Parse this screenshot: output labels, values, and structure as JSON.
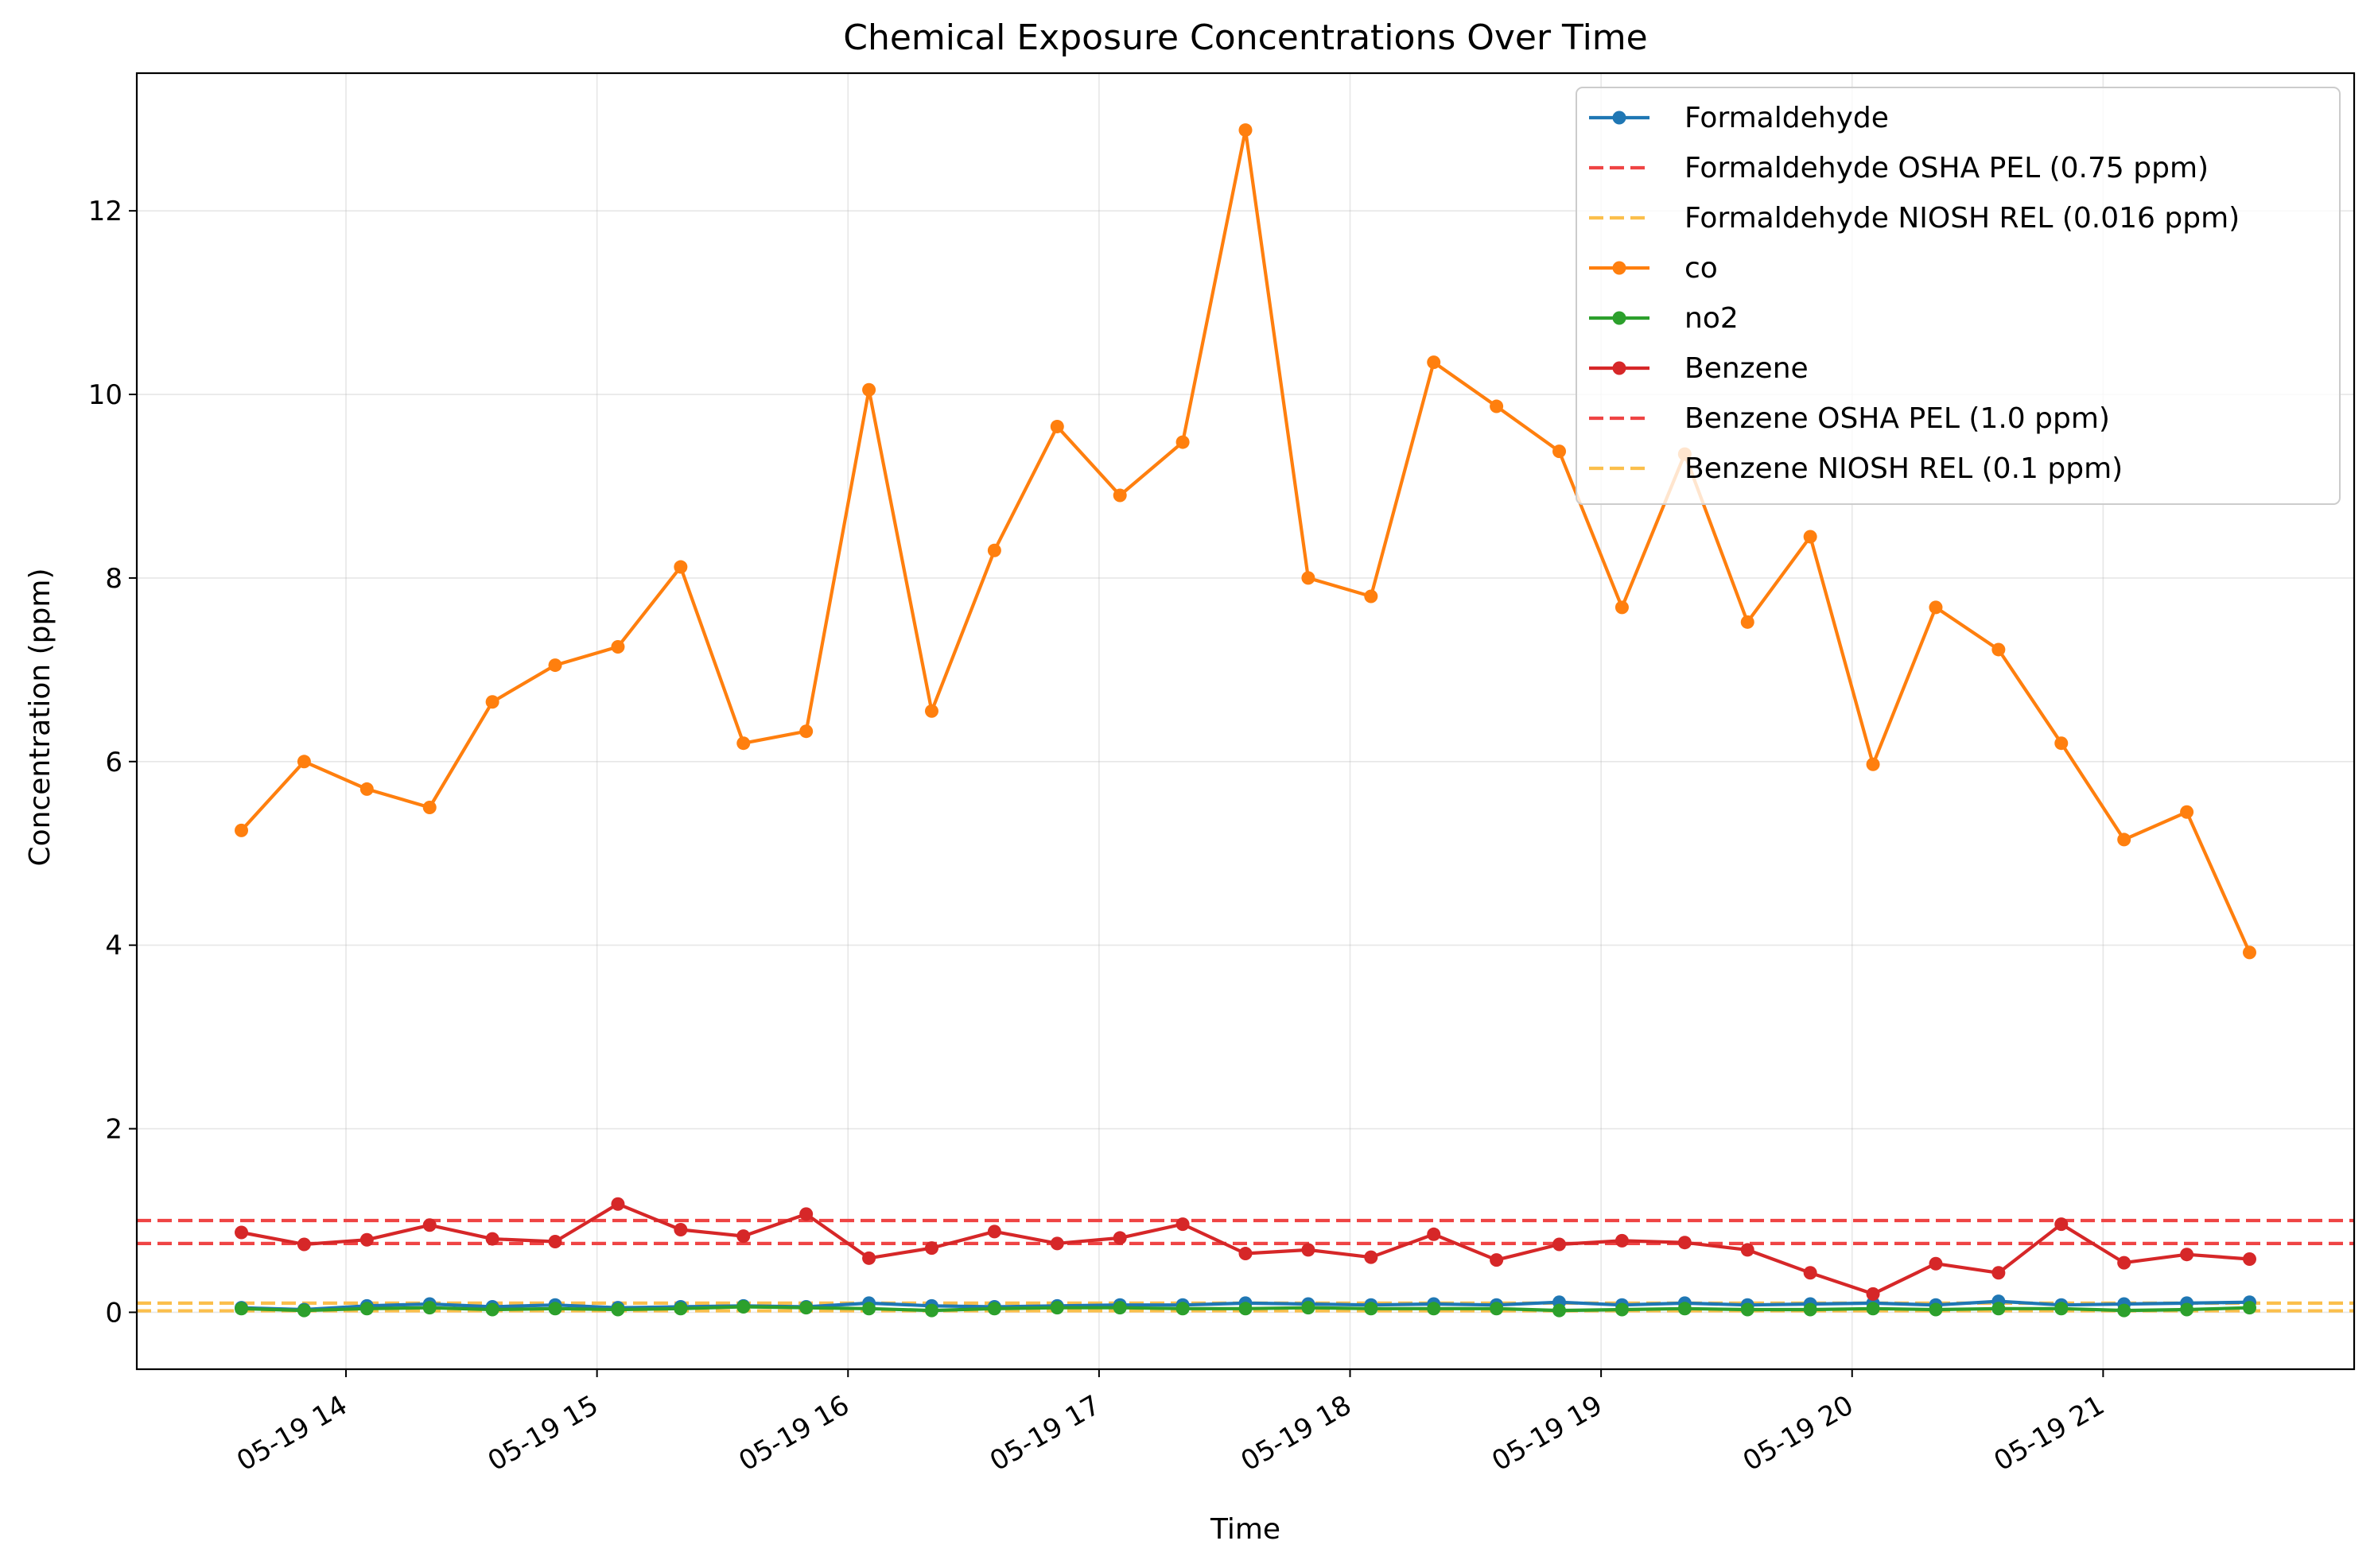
{
  "chart_data": {
    "type": "line",
    "title": "Chemical Exposure Concentrations Over Time",
    "xlabel": "Time",
    "ylabel": "Concentration (ppm)",
    "x_axis_type": "time",
    "x": [
      "05-19 13:35",
      "05-19 13:50",
      "05-19 14:05",
      "05-19 14:20",
      "05-19 14:35",
      "05-19 14:50",
      "05-19 15:05",
      "05-19 15:20",
      "05-19 15:35",
      "05-19 15:50",
      "05-19 16:05",
      "05-19 16:20",
      "05-19 16:35",
      "05-19 16:50",
      "05-19 17:05",
      "05-19 17:20",
      "05-19 17:35",
      "05-19 17:50",
      "05-19 18:05",
      "05-19 18:20",
      "05-19 18:35",
      "05-19 18:50",
      "05-19 19:05",
      "05-19 19:20",
      "05-19 19:35",
      "05-19 19:50",
      "05-19 20:05",
      "05-19 20:20",
      "05-19 20:35",
      "05-19 20:50",
      "05-19 21:05",
      "05-19 21:20",
      "05-19 21:35"
    ],
    "xlim": [
      "05-19 13:10",
      "05-19 22:00"
    ],
    "ylim": [
      -0.62,
      13.5
    ],
    "x_ticks": [
      {
        "value": "05-19 14:00",
        "label": "05-19 14"
      },
      {
        "value": "05-19 15:00",
        "label": "05-19 15"
      },
      {
        "value": "05-19 16:00",
        "label": "05-19 16"
      },
      {
        "value": "05-19 17:00",
        "label": "05-19 17"
      },
      {
        "value": "05-19 18:00",
        "label": "05-19 18"
      },
      {
        "value": "05-19 19:00",
        "label": "05-19 19"
      },
      {
        "value": "05-19 20:00",
        "label": "05-19 20"
      },
      {
        "value": "05-19 21:00",
        "label": "05-19 21"
      }
    ],
    "y_ticks": [
      {
        "value": 0,
        "label": "0"
      },
      {
        "value": 2,
        "label": "2"
      },
      {
        "value": 4,
        "label": "4"
      },
      {
        "value": 6,
        "label": "6"
      },
      {
        "value": 8,
        "label": "8"
      },
      {
        "value": 10,
        "label": "10"
      },
      {
        "value": 12,
        "label": "12"
      }
    ],
    "grid": true,
    "legend_position": "top-right",
    "series": [
      {
        "name": "Formaldehyde",
        "color": "#1f77b4",
        "style": "solid-marker",
        "values": [
          0.05,
          0.03,
          0.07,
          0.09,
          0.06,
          0.08,
          0.05,
          0.06,
          0.07,
          0.06,
          0.1,
          0.07,
          0.06,
          0.07,
          0.08,
          0.08,
          0.1,
          0.09,
          0.08,
          0.09,
          0.08,
          0.11,
          0.08,
          0.1,
          0.08,
          0.09,
          0.1,
          0.08,
          0.12,
          0.08,
          0.09,
          0.1,
          0.11
        ]
      },
      {
        "name": "co",
        "color": "#ff7f0e",
        "style": "solid-marker",
        "values": [
          5.25,
          6.0,
          5.7,
          5.5,
          6.65,
          7.05,
          7.25,
          8.12,
          6.2,
          6.33,
          10.05,
          6.55,
          8.3,
          9.65,
          8.9,
          9.48,
          12.88,
          8.0,
          7.8,
          10.35,
          9.87,
          9.38,
          7.68,
          9.35,
          7.52,
          8.45,
          5.97,
          7.68,
          7.22,
          6.2,
          5.15,
          5.45,
          3.92
        ]
      },
      {
        "name": "no2",
        "color": "#2ca02c",
        "style": "solid-marker",
        "values": [
          0.04,
          0.02,
          0.04,
          0.05,
          0.03,
          0.04,
          0.03,
          0.04,
          0.06,
          0.05,
          0.04,
          0.02,
          0.04,
          0.05,
          0.05,
          0.04,
          0.04,
          0.05,
          0.04,
          0.04,
          0.04,
          0.02,
          0.03,
          0.04,
          0.03,
          0.03,
          0.04,
          0.03,
          0.04,
          0.04,
          0.02,
          0.03,
          0.05
        ]
      },
      {
        "name": "Benzene",
        "color": "#d62728",
        "style": "solid-marker",
        "values": [
          0.87,
          0.74,
          0.79,
          0.95,
          0.8,
          0.77,
          1.18,
          0.9,
          0.83,
          1.07,
          0.59,
          0.7,
          0.88,
          0.75,
          0.81,
          0.96,
          0.64,
          0.68,
          0.6,
          0.85,
          0.57,
          0.74,
          0.78,
          0.76,
          0.68,
          0.43,
          0.2,
          0.53,
          0.43,
          0.96,
          0.54,
          0.63,
          0.58
        ]
      }
    ],
    "reference_lines": [
      {
        "name": "Formaldehyde OSHA PEL (0.75 ppm)",
        "value": 0.75,
        "color": "#ef4444",
        "style": "dashed"
      },
      {
        "name": "Formaldehyde NIOSH REL (0.016 ppm)",
        "value": 0.016,
        "color": "#fbbf4c",
        "style": "dashed"
      },
      {
        "name": "Benzene OSHA PEL (1.0 ppm)",
        "value": 1.0,
        "color": "#ef4444",
        "style": "dashed"
      },
      {
        "name": "Benzene NIOSH REL (0.1 ppm)",
        "value": 0.1,
        "color": "#fbbf4c",
        "style": "dashed"
      }
    ],
    "legend_entries": [
      {
        "label": "Formaldehyde",
        "color": "#1f77b4",
        "kind": "marker"
      },
      {
        "label": "Formaldehyde OSHA PEL (0.75 ppm)",
        "color": "#ef4444",
        "kind": "dashed"
      },
      {
        "label": "Formaldehyde NIOSH REL (0.016 ppm)",
        "color": "#fbbf4c",
        "kind": "dashed"
      },
      {
        "label": "co",
        "color": "#ff7f0e",
        "kind": "marker"
      },
      {
        "label": "no2",
        "color": "#2ca02c",
        "kind": "marker"
      },
      {
        "label": "Benzene",
        "color": "#d62728",
        "kind": "marker"
      },
      {
        "label": "Benzene OSHA PEL (1.0 ppm)",
        "color": "#ef4444",
        "kind": "dashed"
      },
      {
        "label": "Benzene NIOSH REL (0.1 ppm)",
        "color": "#fbbf4c",
        "kind": "dashed"
      }
    ]
  }
}
